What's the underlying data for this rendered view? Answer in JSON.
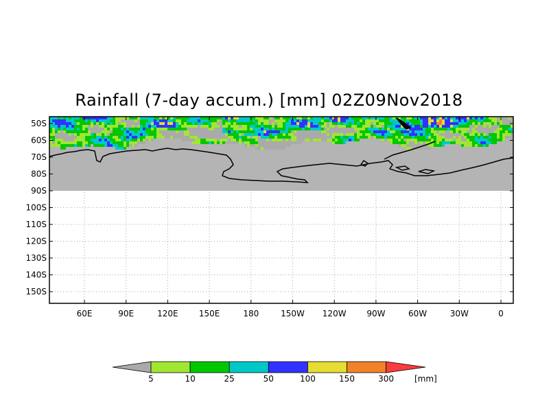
{
  "title": "Rainfall (7-day accum.) [mm] 02Z09Nov2018",
  "lat_labels": [
    "50S",
    "60S",
    "70S",
    "80S",
    "90S",
    "100S",
    "110S",
    "120S",
    "130S",
    "140S",
    "150S"
  ],
  "lon_labels": [
    "60E",
    "90E",
    "120E",
    "150E",
    "180",
    "150W",
    "120W",
    "90W",
    "60W",
    "30W",
    "0"
  ],
  "colorbar": {
    "thresholds": [
      "5",
      "10",
      "25",
      "50",
      "100",
      "150",
      "300"
    ],
    "unit": "[mm]",
    "colors": {
      "below": "#aaaaaa",
      "bins": [
        "#a0e632",
        "#00c800",
        "#00c8c8",
        "#3232ff",
        "#e6dc32",
        "#f08228"
      ],
      "above": "#fa3c3c"
    }
  },
  "map": {
    "land_color": "#b4b4b4",
    "coast_color": "#000000"
  }
}
